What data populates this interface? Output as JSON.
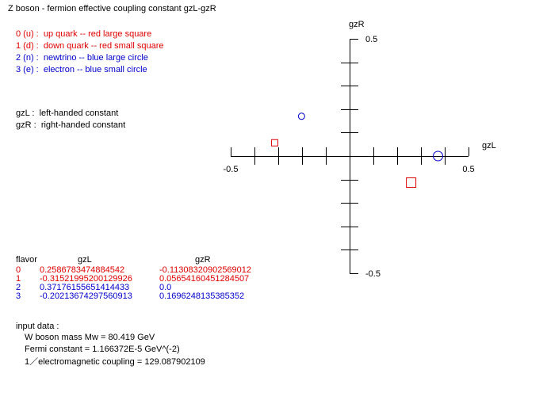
{
  "title": "Z boson - fermion effective coupling constant gzL-gzR",
  "legend": [
    {
      "idx": "0 (u) :",
      "text": "up quark -- red large square",
      "color": "#e00000"
    },
    {
      "idx": "1 (d) :",
      "text": "down quark -- red small square",
      "color": "#e00000"
    },
    {
      "idx": "2 (n) :",
      "text": "newtrino -- blue large circle",
      "color": "#0000cc"
    },
    {
      "idx": "3 (e) :",
      "text": "electron -- blue small circle",
      "color": "#0000cc"
    }
  ],
  "defs": [
    {
      "key": "gzL :",
      "text": "left-handed constant"
    },
    {
      "key": "gzR :",
      "text": "right-handed constant"
    }
  ],
  "table": {
    "headers": [
      "flavor",
      "gzL",
      "gzR"
    ],
    "rows": [
      {
        "flavor": "0",
        "gzL": "0.2586783474884542",
        "gzR": "-0.11308320902569012",
        "color": "#e00000"
      },
      {
        "flavor": "1",
        "gzL": "-0.31521995200129926",
        "gzR": "0.05654160451284507",
        "color": "#e00000"
      },
      {
        "flavor": "2",
        "gzL": "0.37176155651414433",
        "gzR": "0.0",
        "color": "#0000cc"
      },
      {
        "flavor": "3",
        "gzL": "-0.20213674297560913",
        "gzR": "0.1696248135385352",
        "color": "#0000cc"
      }
    ]
  },
  "input": {
    "heading": "input data :",
    "lines": [
      "W boson mass Mw = 80.419 GeV",
      "Fermi constant = 1.166372E-5 GeV^(-2)",
      "1／electromagnetic coupling = 129.087902109"
    ]
  },
  "chart_data": {
    "type": "scatter",
    "xlabel": "gzL",
    "ylabel": "gzR",
    "xlim": [
      -0.5,
      0.5
    ],
    "ylim": [
      -0.5,
      0.5
    ],
    "xticks": [
      "-0.5",
      "0.5"
    ],
    "yticks": [
      "0.5",
      "-0.5"
    ],
    "series": [
      {
        "name": "up quark",
        "marker": "square-large",
        "color": "#e00000",
        "x": 0.2586783474884542,
        "y": -0.11308320902569012
      },
      {
        "name": "down quark",
        "marker": "square-small",
        "color": "#e00000",
        "x": -0.31521995200129926,
        "y": 0.05654160451284507
      },
      {
        "name": "newtrino",
        "marker": "circle-large",
        "color": "#0000cc",
        "x": 0.37176155651414433,
        "y": 0.0
      },
      {
        "name": "electron",
        "marker": "circle-small",
        "color": "#0000cc",
        "x": -0.20213674297560913,
        "y": 0.1696248135385352
      }
    ]
  }
}
